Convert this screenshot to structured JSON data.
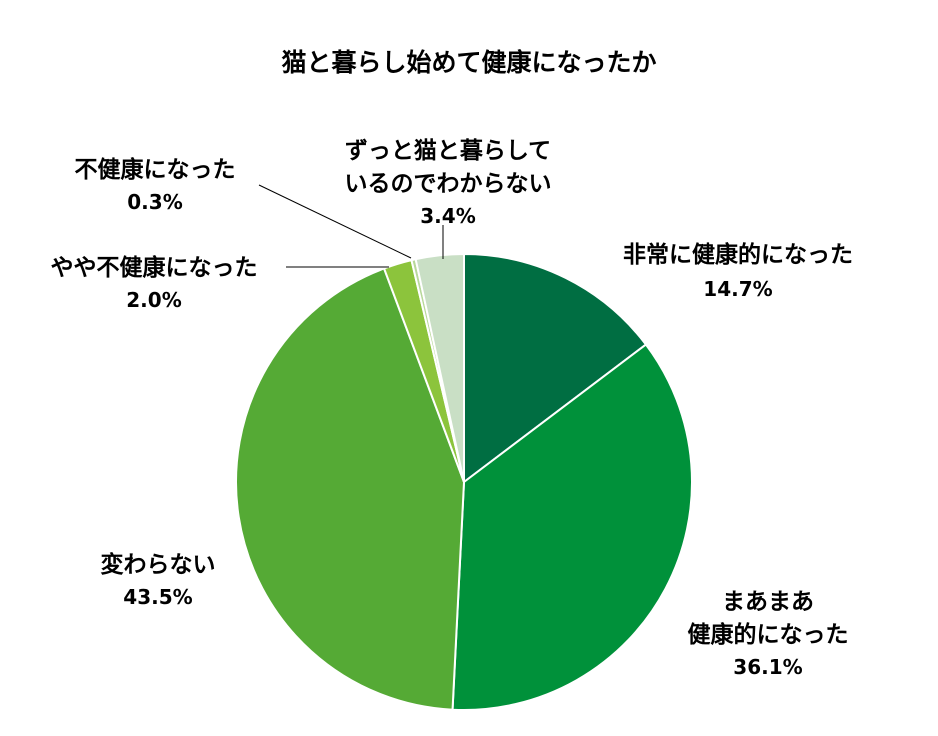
{
  "chart_data": {
    "type": "pie",
    "title": "猫と暮らし始めて健康になったか",
    "start": "top",
    "direction": "clockwise",
    "slices": [
      {
        "label": "非常に健康的になった",
        "label_lines": [
          "非常に健康的になった"
        ],
        "value": 14.7,
        "value_label": "14.7%",
        "color": "#006e42"
      },
      {
        "label": "まあまあ健康的になった",
        "label_lines": [
          "まあまあ",
          "健康的になった"
        ],
        "value": 36.1,
        "value_label": "36.1%",
        "color": "#00913a"
      },
      {
        "label": "変わらない",
        "label_lines": [
          "変わらない"
        ],
        "value": 43.5,
        "value_label": "43.5%",
        "color": "#55aa35"
      },
      {
        "label": "やや不健康になった",
        "label_lines": [
          "やや不健康になった"
        ],
        "value": 2.0,
        "value_label": "2.0%",
        "color": "#8cc43c"
      },
      {
        "label": "不健康になった",
        "label_lines": [
          "不健康になった"
        ],
        "value": 0.3,
        "value_label": "0.3%",
        "color": "#b8d89a"
      },
      {
        "label": "ずっと猫と暮らしているのでわからない",
        "label_lines": [
          "ずっと猫と暮らして",
          "いるのでわからない"
        ],
        "value": 3.4,
        "value_label": "3.4%",
        "color": "#c9dfc5"
      }
    ]
  }
}
